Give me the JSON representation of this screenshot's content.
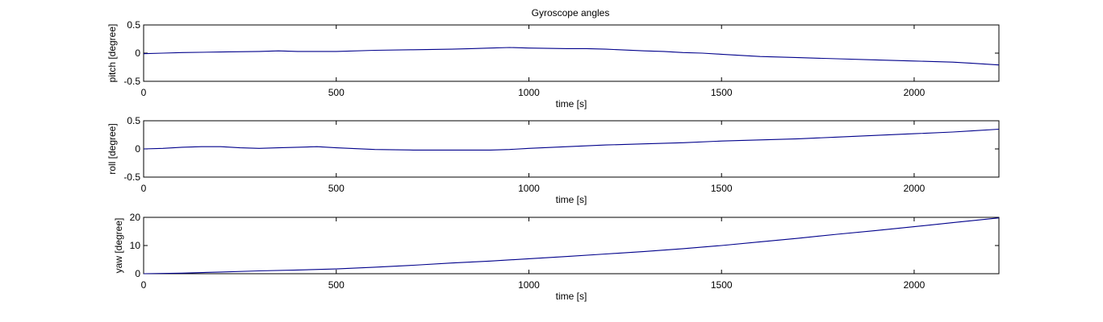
{
  "figure": {
    "title": "Gyroscope angles"
  },
  "chart_data": [
    {
      "type": "line",
      "xlabel": "time [s]",
      "ylabel": "pitch [degree]",
      "xlim": [
        0,
        2220
      ],
      "ylim": [
        -0.5,
        0.5
      ],
      "xticks": [
        0,
        500,
        1000,
        1500,
        2000
      ],
      "yticks": [
        -0.5,
        0,
        0.5
      ],
      "grid": false,
      "color": "#00008B",
      "series": [
        {
          "x": [
            0,
            50,
            100,
            200,
            300,
            350,
            400,
            500,
            600,
            700,
            800,
            850,
            900,
            950,
            1000,
            1100,
            1150,
            1200,
            1300,
            1350,
            1400,
            1450,
            1500,
            1550,
            1600,
            1700,
            1800,
            1900,
            2000,
            2100,
            2150,
            2220
          ],
          "y": [
            -0.01,
            0.0,
            0.01,
            0.02,
            0.03,
            0.04,
            0.03,
            0.03,
            0.05,
            0.06,
            0.07,
            0.08,
            0.09,
            0.1,
            0.09,
            0.08,
            0.08,
            0.07,
            0.04,
            0.03,
            0.01,
            0.0,
            -0.02,
            -0.04,
            -0.06,
            -0.08,
            -0.1,
            -0.12,
            -0.14,
            -0.16,
            -0.18,
            -0.21
          ]
        }
      ]
    },
    {
      "type": "line",
      "xlabel": "time [s]",
      "ylabel": "roll [degree]",
      "xlim": [
        0,
        2220
      ],
      "ylim": [
        -0.5,
        0.5
      ],
      "xticks": [
        0,
        500,
        1000,
        1500,
        2000
      ],
      "yticks": [
        -0.5,
        0,
        0.5
      ],
      "grid": false,
      "color": "#00008B",
      "series": [
        {
          "x": [
            0,
            50,
            100,
            150,
            200,
            250,
            300,
            350,
            400,
            450,
            500,
            600,
            700,
            800,
            900,
            950,
            1000,
            1100,
            1200,
            1300,
            1400,
            1500,
            1600,
            1700,
            1800,
            1900,
            2000,
            2100,
            2150,
            2220
          ],
          "y": [
            0.0,
            0.01,
            0.03,
            0.04,
            0.04,
            0.02,
            0.01,
            0.02,
            0.03,
            0.04,
            0.02,
            -0.01,
            -0.02,
            -0.02,
            -0.02,
            -0.01,
            0.01,
            0.04,
            0.07,
            0.09,
            0.11,
            0.14,
            0.16,
            0.18,
            0.21,
            0.24,
            0.27,
            0.3,
            0.32,
            0.35
          ]
        }
      ]
    },
    {
      "type": "line",
      "xlabel": "time [s]",
      "ylabel": "yaw [degree]",
      "xlim": [
        0,
        2220
      ],
      "ylim": [
        0,
        20
      ],
      "xticks": [
        0,
        500,
        1000,
        1500,
        2000
      ],
      "yticks": [
        0,
        10,
        20
      ],
      "grid": false,
      "color": "#00008B",
      "series": [
        {
          "x": [
            0,
            100,
            200,
            300,
            400,
            500,
            600,
            700,
            800,
            900,
            1000,
            1100,
            1200,
            1300,
            1400,
            1500,
            1600,
            1700,
            1800,
            1900,
            2000,
            2100,
            2220
          ],
          "y": [
            0.0,
            0.2,
            0.6,
            1.0,
            1.3,
            1.7,
            2.3,
            3.0,
            3.8,
            4.5,
            5.3,
            6.1,
            7.0,
            7.9,
            8.9,
            10.0,
            11.3,
            12.6,
            14.0,
            15.3,
            16.7,
            18.1,
            19.8
          ]
        }
      ]
    }
  ]
}
